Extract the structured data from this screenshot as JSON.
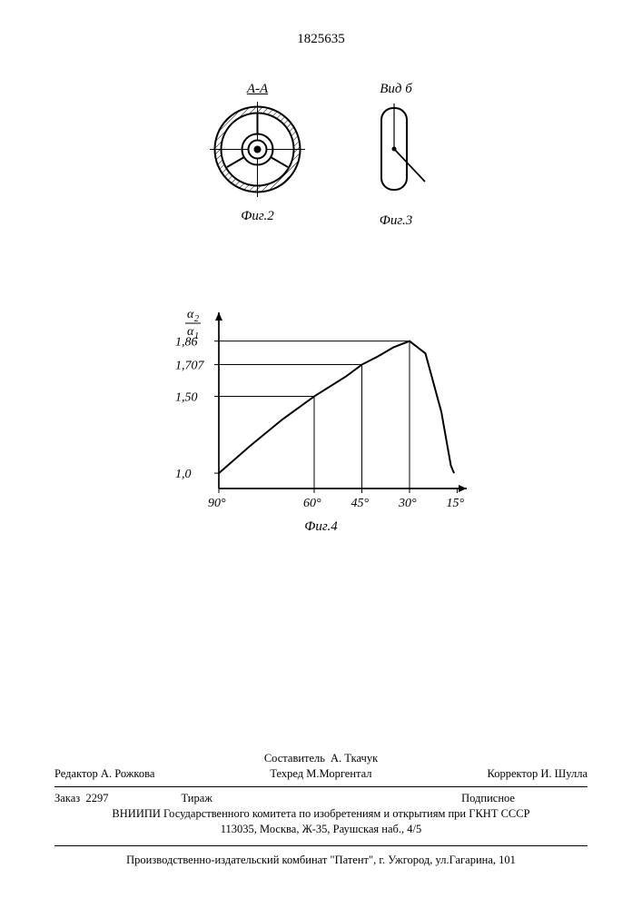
{
  "page_number": "1825635",
  "fig2": {
    "label_top": "А-А",
    "caption": "Фиг.2"
  },
  "fig3": {
    "label_top": "Вид б",
    "caption": "Фиг.3"
  },
  "chart": {
    "caption": "Фиг.4",
    "y_axis_label": "α₂/α₁",
    "x_ticks": [
      "90°",
      "60°",
      "45°",
      "30°",
      "15°"
    ],
    "y_ticks": [
      "1,0",
      "1,50",
      "1,707",
      "1,86"
    ],
    "curve": [
      {
        "x": 90,
        "y": 1.0
      },
      {
        "x": 80,
        "y": 1.18
      },
      {
        "x": 70,
        "y": 1.35
      },
      {
        "x": 60,
        "y": 1.5
      },
      {
        "x": 50,
        "y": 1.63
      },
      {
        "x": 45,
        "y": 1.707
      },
      {
        "x": 40,
        "y": 1.76
      },
      {
        "x": 35,
        "y": 1.82
      },
      {
        "x": 30,
        "y": 1.86
      },
      {
        "x": 25,
        "y": 1.78
      },
      {
        "x": 20,
        "y": 1.4
      },
      {
        "x": 17,
        "y": 1.05
      },
      {
        "x": 16,
        "y": 1.0
      }
    ],
    "guide_lines": [
      {
        "x": 60,
        "y": 1.5
      },
      {
        "x": 45,
        "y": 1.707
      },
      {
        "x": 30,
        "y": 1.86
      }
    ],
    "xlim": [
      90,
      12
    ],
    "ylim": [
      0.9,
      2.0
    ],
    "colors": {
      "line": "#000000",
      "background": "#ffffff"
    },
    "line_width": 2
  },
  "footer": {
    "editor_label": "Редактор",
    "editor_name": "А. Рожкова",
    "compiler_label": "Составитель",
    "compiler_name": "А. Ткачук",
    "techred_label": "Техред",
    "techred_name": "М.Моргентал",
    "corrector_label": "Корректор",
    "corrector_name": "И. Шулла",
    "order_label": "Заказ",
    "order_no": "2297",
    "tirage_label": "Тираж",
    "subscription": "Подписное",
    "vniipi": "ВНИИПИ Государственного комитета по изобретениям и открытиям при ГКНТ СССР",
    "address": "113035, Москва, Ж-35, Раушская наб., 4/5",
    "publisher": "Производственно-издательский комбинат \"Патент\", г. Ужгород, ул.Гагарина, 101"
  }
}
